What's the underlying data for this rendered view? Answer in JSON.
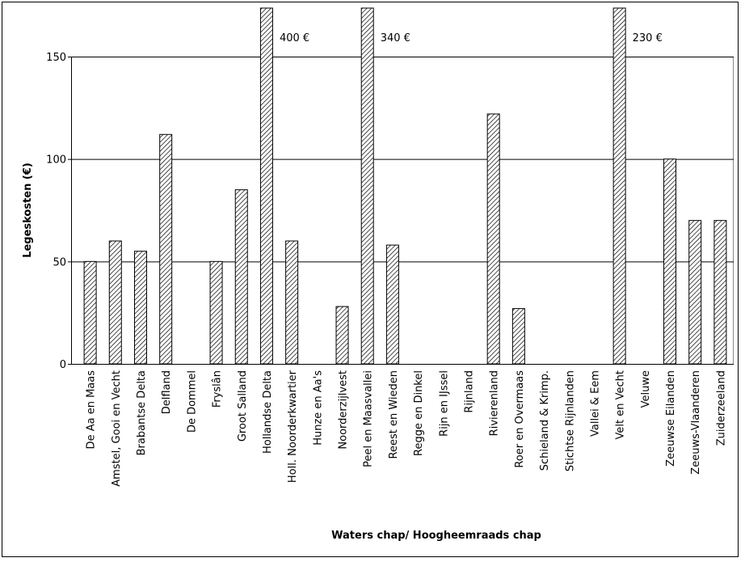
{
  "chart_data": {
    "type": "bar",
    "x_label": "Waters chap/ Hoogheemraads chap",
    "y_label": "Legeskosten (€)",
    "categories": [
      "De Aa en Maas",
      "Amstel, Gooi en Vecht",
      "Brabantse Delta",
      "Delfland",
      "De Dommel",
      "Fryslân",
      "Groot Salland",
      "Hollandse Delta",
      "Holl. Noorderkwartier",
      "Hunze en Aa's",
      "Noorderzijlvest",
      "Peel en Maasvallei",
      "Reest en Wieden",
      "Regge en Dinkel",
      "Rijn en IJssel",
      "Rijnland",
      "Rivierenland",
      "Roer en Overmaas",
      "Schieland & Krimp.",
      "Stichtse Rijnlanden",
      "Vallei & Eem",
      "Velt en Vecht",
      "Veluwe",
      "Zeeuwse Eilanden",
      "Zeeuws-Vlaanderen",
      "Zuiderzeeland"
    ],
    "values": [
      50,
      60,
      55,
      112,
      null,
      50,
      85,
      400,
      60,
      null,
      28,
      340,
      58,
      null,
      null,
      null,
      122,
      27,
      null,
      null,
      null,
      230,
      null,
      100,
      70,
      70
    ],
    "value_labels": [
      null,
      null,
      null,
      null,
      null,
      null,
      null,
      "400 €",
      null,
      null,
      null,
      "340 €",
      null,
      null,
      null,
      null,
      null,
      null,
      null,
      null,
      null,
      "230 €",
      null,
      null,
      null,
      null
    ],
    "ylim": [
      0,
      150
    ],
    "yticks": [
      0,
      50,
      100,
      150
    ],
    "grid": true,
    "color": "#000000"
  }
}
